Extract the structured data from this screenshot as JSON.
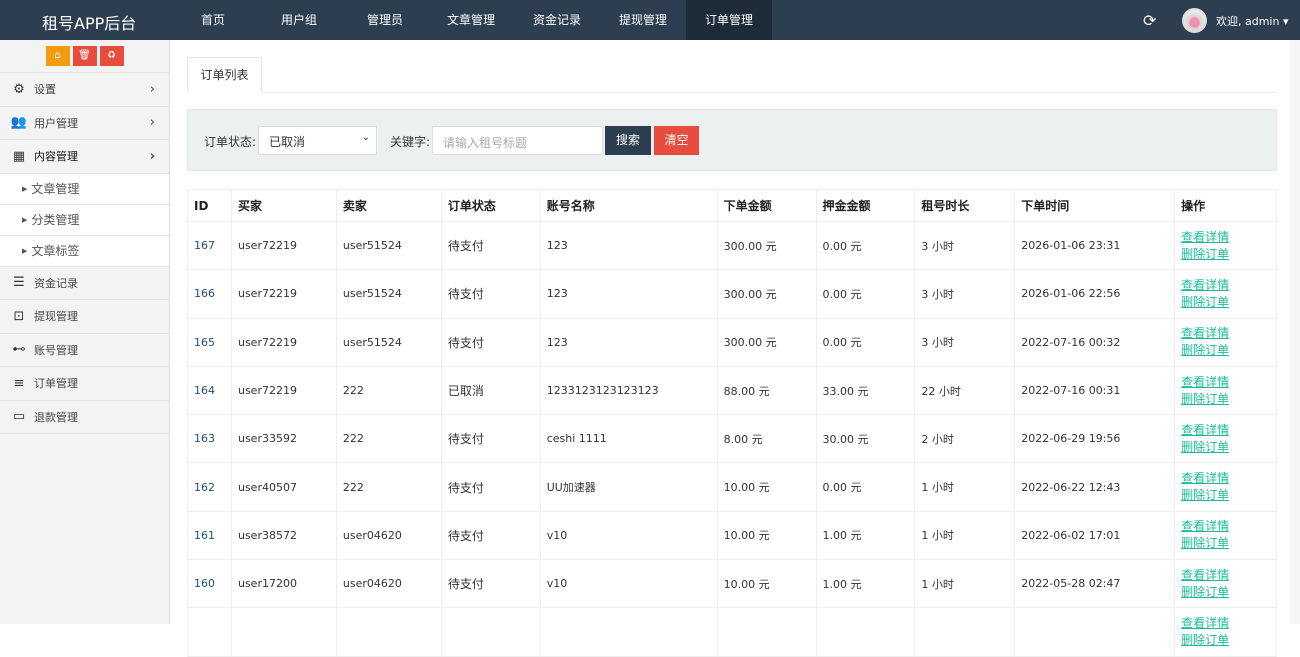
{
  "header": {
    "brand": "租号APP后台",
    "nav": [
      "首页",
      "用户组",
      "管理员",
      "文章管理",
      "资金记录",
      "提现管理",
      "订单管理"
    ],
    "active_nav": "订单管理",
    "user": "欢迎, admin ▾",
    "refresh_icon": "refresh-icon"
  },
  "sidebar": {
    "quick_buttons": [
      {
        "icon": "home-icon",
        "color": "#f39c12",
        "glyph": "⌂"
      },
      {
        "icon": "trash-icon",
        "color": "#e74c3c",
        "glyph": "🗑"
      },
      {
        "icon": "recycle-icon",
        "color": "#e74c3c",
        "glyph": "♻"
      }
    ],
    "items": [
      {
        "label": "设置",
        "icon": "gears-icon",
        "glyph": "⚙",
        "chev": "›"
      },
      {
        "label": "用户管理",
        "icon": "users-icon",
        "glyph": "👥",
        "chev": "›"
      },
      {
        "label": "内容管理",
        "icon": "grid-icon",
        "glyph": "▦",
        "chev": "›",
        "open": true
      }
    ],
    "subitems": [
      "文章管理",
      "分类管理",
      "文章标签"
    ],
    "items2": [
      {
        "label": "资金记录",
        "icon": "list-icon",
        "glyph": "☰"
      },
      {
        "label": "提现管理",
        "icon": "money-icon",
        "glyph": "⊡"
      },
      {
        "label": "账号管理",
        "icon": "gamepad-icon",
        "glyph": "⊷"
      },
      {
        "label": "订单管理",
        "icon": "bars-icon",
        "glyph": "≡"
      },
      {
        "label": "退款管理",
        "icon": "monitor-icon",
        "glyph": "▭"
      }
    ]
  },
  "main": {
    "tab": "订单列表",
    "filter": {
      "status_label": "订单状态:",
      "status_value": "已取消",
      "keyword_label": "关键字:",
      "keyword_placeholder": "请输入租号标题",
      "search": "搜索",
      "clear": "清空"
    },
    "columns": [
      "ID",
      "买家",
      "卖家",
      "订单状态",
      "账号名称",
      "下单金额",
      "押金金额",
      "租号时长",
      "下单时间",
      "操作"
    ],
    "actions": [
      "查看详情",
      "删除订单"
    ],
    "rows": [
      [
        "167",
        "user72219",
        "user51524",
        "待支付",
        "123",
        "300.00 元",
        "0.00 元",
        "3 小时",
        "2026-01-06 23:31"
      ],
      [
        "166",
        "user72219",
        "user51524",
        "待支付",
        "123",
        "300.00 元",
        "0.00 元",
        "3 小时",
        "2026-01-06 22:56"
      ],
      [
        "165",
        "user72219",
        "user51524",
        "待支付",
        "123",
        "300.00 元",
        "0.00 元",
        "3 小时",
        "2022-07-16 00:32"
      ],
      [
        "164",
        "user72219",
        "222",
        "已取消",
        "1233123123123123",
        "88.00 元",
        "33.00 元",
        "22 小时",
        "2022-07-16 00:31"
      ],
      [
        "163",
        "user33592",
        "222",
        "待支付",
        "ceshi 1111",
        "8.00 元",
        "30.00 元",
        "2 小时",
        "2022-06-29 19:56"
      ],
      [
        "162",
        "user40507",
        "222",
        "待支付",
        "UU加速器",
        "10.00 元",
        "0.00 元",
        "1 小时",
        "2022-06-22 12:43"
      ],
      [
        "161",
        "user38572",
        "user04620",
        "待支付",
        "v10",
        "10.00 元",
        "1.00 元",
        "1 小时",
        "2022-06-02 17:01"
      ],
      [
        "160",
        "user17200",
        "user04620",
        "待支付",
        "v10",
        "10.00 元",
        "1.00 元",
        "1 小时",
        "2022-05-28 02:47"
      ],
      [
        "",
        "",
        "",
        "",
        "",
        "",
        "",
        "",
        ""
      ]
    ]
  },
  "colors": {
    "topbar": "#2c3e50",
    "link": "#1abc9c",
    "search": "#2c3e50",
    "clear": "#e74c3c"
  }
}
